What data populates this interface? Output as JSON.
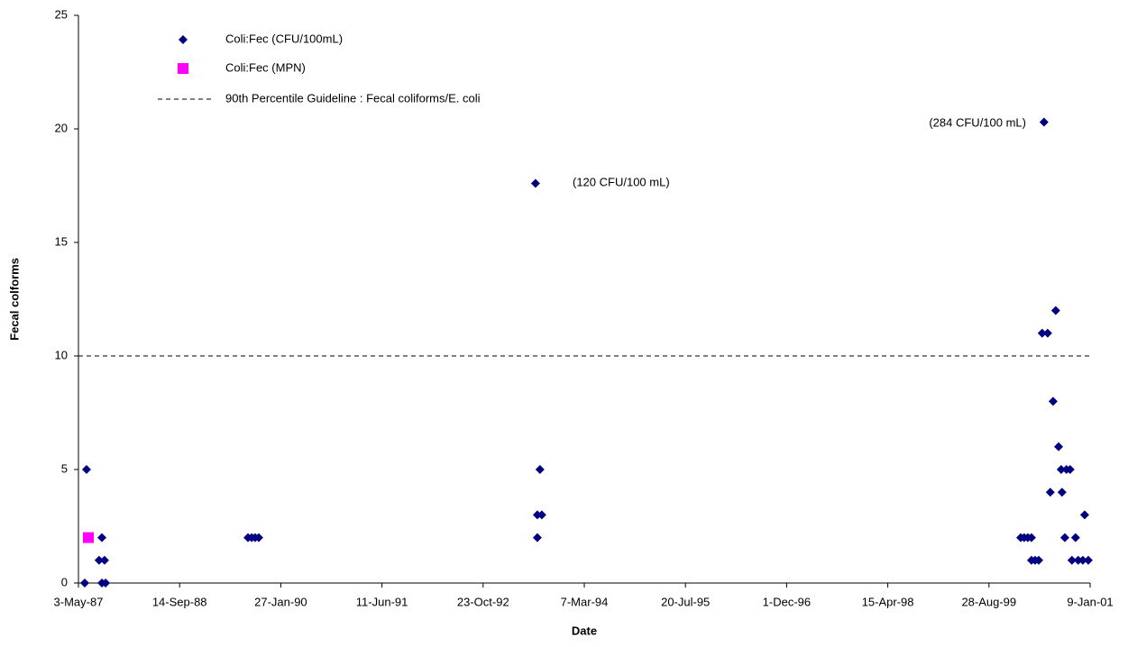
{
  "chart_data": {
    "type": "scatter",
    "x_label": "Date",
    "y_label": "Fecal colforms",
    "xlim": [
      "3-May-87",
      "9-Jan-01"
    ],
    "xticks": [
      "3-May-87",
      "14-Sep-88",
      "27-Jan-90",
      "11-Jun-91",
      "23-Oct-92",
      "7-Mar-94",
      "20-Jul-95",
      "1-Dec-96",
      "15-Apr-98",
      "28-Aug-99",
      "9-Jan-01"
    ],
    "ylim": [
      0,
      25
    ],
    "yticks": [
      0,
      5,
      10,
      15,
      20,
      25
    ],
    "grid": false,
    "legend": "upper left",
    "series": [
      {
        "name": "Coli:Fec (CFU/100mL)",
        "color": "#000080",
        "marker": "diamond",
        "x": [
          "3-Jun-87",
          "12-Jun-87",
          "13-Aug-87",
          "27-Aug-87",
          "9-Sep-87",
          "27-Aug-87",
          "14-Sep-87",
          "18-Aug-89",
          "5-Sep-89",
          "22-Sep-89",
          "10-Oct-89",
          "9-Jul-93",
          "18-Jul-93",
          "18-Jul-93",
          "31-Jul-93",
          "9-Aug-93",
          "1-Feb-00",
          "18-Feb-00",
          "7-Mar-00",
          "25-Mar-00",
          "25-Mar-00",
          "12-Apr-00",
          "30-Apr-00",
          "17-May-00",
          "26-May-00",
          "13-Jun-00",
          "26-Jun-00",
          "10-Jul-00",
          "23-Jul-00",
          "6-Aug-00",
          "19-Aug-00",
          "23-Aug-00",
          "6-Sep-00",
          "14-Sep-00",
          "2-Oct-00",
          "11-Oct-00",
          "29-Oct-00",
          "11-Nov-00",
          "4-Dec-00",
          "13-Dec-00",
          "31-Dec-00"
        ],
        "values": [
          0,
          5,
          1,
          2,
          1,
          0,
          0,
          2,
          2,
          2,
          2,
          17.6,
          2,
          3,
          5,
          3,
          2,
          2,
          2,
          2,
          1,
          1,
          1,
          11,
          20.3,
          11,
          4,
          8,
          12,
          6,
          5,
          4,
          2,
          5,
          5,
          1,
          2,
          1,
          1,
          3,
          1
        ]
      },
      {
        "name": "Coli:Fec (MPN)",
        "color": "#ff00ff",
        "marker": "square",
        "x": [
          "21-Jun-87"
        ],
        "values": [
          2
        ]
      }
    ],
    "reference_lines": [
      {
        "name": "90th Percentile Guideline : Fecal coliforms/E. coli",
        "value": 10,
        "color": "#000000",
        "style": "dashed"
      }
    ],
    "annotations": [
      "(120 CFU/100 mL)",
      "(284 CFU/100 mL)"
    ]
  }
}
